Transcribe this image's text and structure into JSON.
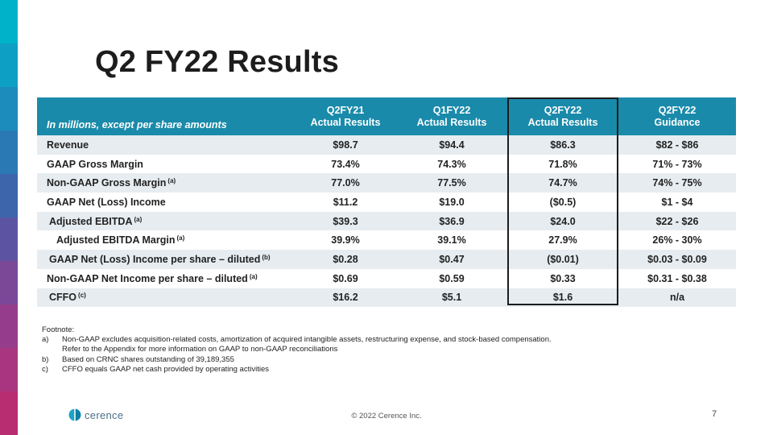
{
  "slide": {
    "title": "Q2 FY22 Results",
    "accent_colors": [
      "#00b2c9",
      "#0ea0c4",
      "#1b8cbb",
      "#2b79b4",
      "#3c65ab",
      "#5c54a3",
      "#7b4797",
      "#953d8c",
      "#a93580",
      "#b82c72"
    ],
    "page_number": "7",
    "copyright": "© 2022 Cerence Inc.",
    "logo_text": "cerence",
    "logo_icon": "cerence-logo-icon"
  },
  "table": {
    "corner_label": "In millions, except per share amounts",
    "columns": [
      {
        "line1": "Q2FY21",
        "line2": "Actual Results"
      },
      {
        "line1": "Q1FY22",
        "line2": "Actual Results"
      },
      {
        "line1": "Q2FY22",
        "line2": "Actual Results"
      },
      {
        "line1": "Q2FY22",
        "line2": "Guidance"
      }
    ],
    "rows": [
      {
        "label": "Revenue",
        "note": "",
        "values": [
          "$98.7",
          "$94.4",
          "$86.3",
          "$82 - $86"
        ]
      },
      {
        "label": "GAAP Gross Margin",
        "note": "",
        "values": [
          "73.4%",
          "74.3%",
          "71.8%",
          "71% - 73%"
        ]
      },
      {
        "label": "Non-GAAP Gross Margin",
        "note": "(a)",
        "values": [
          "77.0%",
          "77.5%",
          "74.7%",
          "74% - 75%"
        ]
      },
      {
        "label": "GAAP Net (Loss) Income",
        "note": "",
        "values": [
          "$11.2",
          "$19.0",
          "($0.5)",
          "$1 - $4"
        ]
      },
      {
        "label": "Adjusted EBITDA",
        "note": "(a)",
        "values": [
          "$39.3",
          "$36.9",
          "$24.0",
          "$22 - $26"
        ]
      },
      {
        "label": "Adjusted EBITDA Margin",
        "note": "(a)",
        "values": [
          "39.9%",
          "39.1%",
          "27.9%",
          "26% - 30%"
        ]
      },
      {
        "label": "GAAP Net (Loss) Income per share – diluted",
        "note": "(b)",
        "values": [
          "$0.28",
          "$0.47",
          "($0.01)",
          "$0.03 - $0.09"
        ]
      },
      {
        "label": "Non-GAAP Net Income per share – diluted",
        "note": "(a)",
        "values": [
          "$0.69",
          "$0.59",
          "$0.33",
          "$0.31 - $0.38"
        ]
      },
      {
        "label": "CFFO",
        "note": "(c)",
        "values": [
          "$16.2",
          "$5.1",
          "$1.6",
          "n/a"
        ]
      }
    ]
  },
  "footnote": {
    "heading": "Footnote:",
    "items": [
      {
        "letter": "a)",
        "text": "Non-GAAP excludes acquisition-related costs, amortization of acquired intangible assets, restructuring expense, and stock-based compensation.",
        "continuation": "Refer to the Appendix for more information on GAAP to non-GAAP reconciliations"
      },
      {
        "letter": "b)",
        "text": "Based on CRNC shares outstanding of 39,189,355"
      },
      {
        "letter": "c)",
        "text": "CFFO equals GAAP net cash provided by operating activities"
      }
    ]
  }
}
